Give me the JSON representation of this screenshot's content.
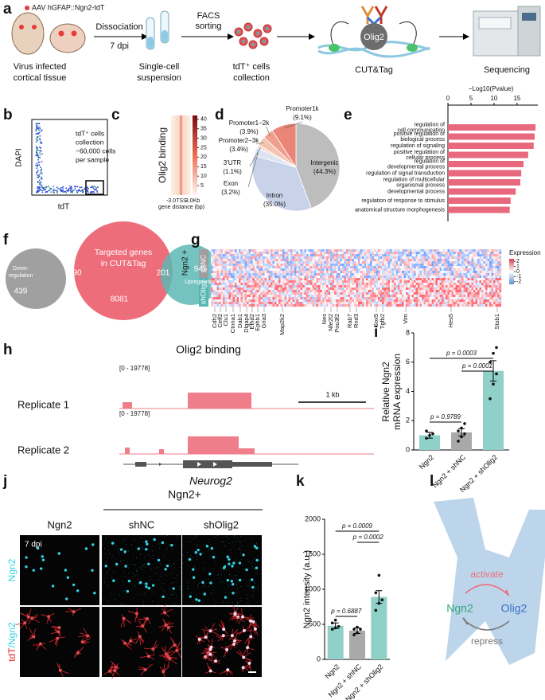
{
  "panel_labels": [
    "a",
    "b",
    "c",
    "d",
    "e",
    "f",
    "g",
    "h",
    "i",
    "j",
    "k",
    "l"
  ],
  "a": {
    "virus": "AAV hGFAP::Ngn2-tdT",
    "step1": [
      "Dissociation",
      "7 dpi"
    ],
    "step2": [
      "FACS",
      "sorting"
    ],
    "stage1": [
      "Virus infected",
      "cortical tissue"
    ],
    "stage2": [
      "Single-cell",
      "suspension"
    ],
    "stage3": [
      "tdT⁺ cells",
      "collection"
    ],
    "protein": "Olig2",
    "method": "CUT&Tag",
    "stage4": "Sequencing"
  },
  "b": {
    "ylabel": "DAPI",
    "xlabel": "tdT",
    "note": [
      "tdT⁺ cells",
      "collection",
      "~60,000 cells",
      "per sample"
    ]
  },
  "c": {
    "type": "heatmap",
    "ylabel": "Olig2 binding",
    "xticks": [
      "-3.0",
      "TSS",
      "3.0Kb"
    ],
    "xlabel": "gene distance (bp)",
    "clim": [
      0,
      42
    ],
    "cticks": [
      5,
      10,
      15,
      20,
      25,
      30,
      35,
      40
    ]
  },
  "d": {
    "type": "pie",
    "categories": [
      "Intergenic",
      "Intron",
      "Exon",
      "3'UTR",
      "Promoter2−3k",
      "Promoter1−2k",
      "Promoter1k"
    ],
    "values": [
      44.3,
      35.0,
      3.2,
      1.1,
      3.4,
      3.9,
      9.1
    ],
    "value_labels": [
      "(44.3%)",
      "(35.0%)",
      "(3.2%)",
      "(1.1%)",
      "(3.4%)",
      "(3.9%)",
      "(9.1%)"
    ],
    "colors": [
      "#bdbdbd",
      "#c8d3ea",
      "#dce3f1",
      "#f5dccf",
      "#f4c3b0",
      "#ef9f8c",
      "#ea8577"
    ]
  },
  "e": {
    "type": "bar",
    "orientation": "horizontal",
    "xlabel": "−Log10(Pvalue)",
    "categories": [
      [
        "regulation of",
        "cell communication"
      ],
      [
        "positive regulation of",
        "biological process"
      ],
      [
        "regulation of signaling"
      ],
      [
        "positive regulation of",
        "cellular process"
      ],
      [
        "regulation of",
        "developmental process"
      ],
      [
        "regulation of signal transduction"
      ],
      [
        "regulation of multicellular",
        "organismal process"
      ],
      [
        "developmental process"
      ],
      [
        "regulation of response to stimulus"
      ],
      [
        "anatomical structure morphogenesis"
      ]
    ],
    "values": [
      19.0,
      18.8,
      18.6,
      17.4,
      16.4,
      15.9,
      15.7,
      14.7,
      13.6,
      13.4
    ],
    "xlim": [
      0,
      19.5
    ],
    "xticks": [
      0,
      5,
      10,
      15
    ],
    "color": "#e8697d"
  },
  "f": {
    "center": [
      "Targeted genes",
      "in CUT&Tag"
    ],
    "left": [
      "Down-",
      "regulation"
    ],
    "right": "Upregulation",
    "counts": {
      "down_only": 439,
      "down_overlap": 90,
      "targets_only": 8081,
      "up_overlap": 201,
      "up_only": 945
    }
  },
  "g": {
    "type": "heatmap",
    "group": "Ngn2 +",
    "rows": [
      "shNC",
      "shOlig2"
    ],
    "legend_title": "Expression",
    "cticks": [
      2,
      1,
      0,
      -1,
      -2
    ],
    "clim": [
      -2.5,
      2.5
    ],
    "genes": [
      "Cdh2",
      "Celf2",
      "Clu1",
      "Ctnna1",
      "Dab1",
      "Dlgap4",
      "Efhd2",
      "Ephb1",
      "Gria3",
      "Map2k2",
      "Nes",
      "Nfe2l2",
      "Pou3f2",
      "Rab7",
      "Rnd3",
      "Sox5",
      "Tgfb2",
      "Vim",
      "Hes5",
      "Stub1"
    ]
  },
  "h": {
    "title": "Olig2 binding",
    "tracks": [
      {
        "name": "Replicate 1",
        "range": "[0 - 19778]"
      },
      {
        "name": "Replicate 2",
        "range": "[0 - 19778]"
      }
    ],
    "scale": "1 kb",
    "gene": "Neurog2"
  },
  "i": {
    "type": "bar",
    "ylabel": [
      "Relative Ngn2",
      "mRNA expression"
    ],
    "categories": [
      "Ngn2",
      "Ngn2 + shNC",
      "Ngn2 + shOlig2"
    ],
    "values": [
      1.0,
      1.2,
      5.4
    ],
    "errors": [
      0.2,
      0.25,
      0.7
    ],
    "points": [
      [
        0.8,
        1.0,
        1.1,
        1.3
      ],
      [
        0.6,
        0.9,
        1.1,
        1.3,
        1.5,
        1.8
      ],
      [
        3.5,
        4.5,
        5.2,
        6.0,
        6.6,
        7.0
      ]
    ],
    "colors": [
      "#8fd0c8",
      "#a9a9a9",
      "#8fd0c8"
    ],
    "ylim": [
      0,
      8
    ],
    "yticks": [
      0,
      2,
      4,
      6,
      8
    ],
    "p_values": [
      "p = 0.9789",
      "p = 0.0001",
      "p = 0.0003"
    ]
  },
  "j": {
    "group": "Ngn2+",
    "columns": [
      "Ngn2",
      "shNC",
      "shOlig2"
    ],
    "time": "7 dpi",
    "row1_label": "Ngn2",
    "row2_label": [
      "tdT",
      "/Ngn2"
    ]
  },
  "k": {
    "type": "bar",
    "ylabel": "Ngn2 intensity (a.u.)",
    "categories": [
      "Ngn2",
      "Ngn2 + shNC",
      "Ngn2 + shOlig2"
    ],
    "values": [
      480,
      410,
      890
    ],
    "errors": [
      40,
      40,
      90
    ],
    "points": [
      [
        430,
        450,
        470,
        520,
        560
      ],
      [
        350,
        380,
        430,
        430,
        460
      ],
      [
        700,
        800,
        850,
        950,
        1200
      ]
    ],
    "colors": [
      "#8fd0c8",
      "#a9a9a9",
      "#8fd0c8"
    ],
    "ylim": [
      0,
      2000
    ],
    "yticks": [
      0,
      500,
      1000,
      1500,
      2000
    ],
    "p_values": [
      "p = 0.6887",
      "p = 0.0002",
      "p = 0.0009"
    ]
  },
  "l": {
    "activate": "activate",
    "left": "Ngn2",
    "right": "Olig2",
    "repress": "repress"
  }
}
